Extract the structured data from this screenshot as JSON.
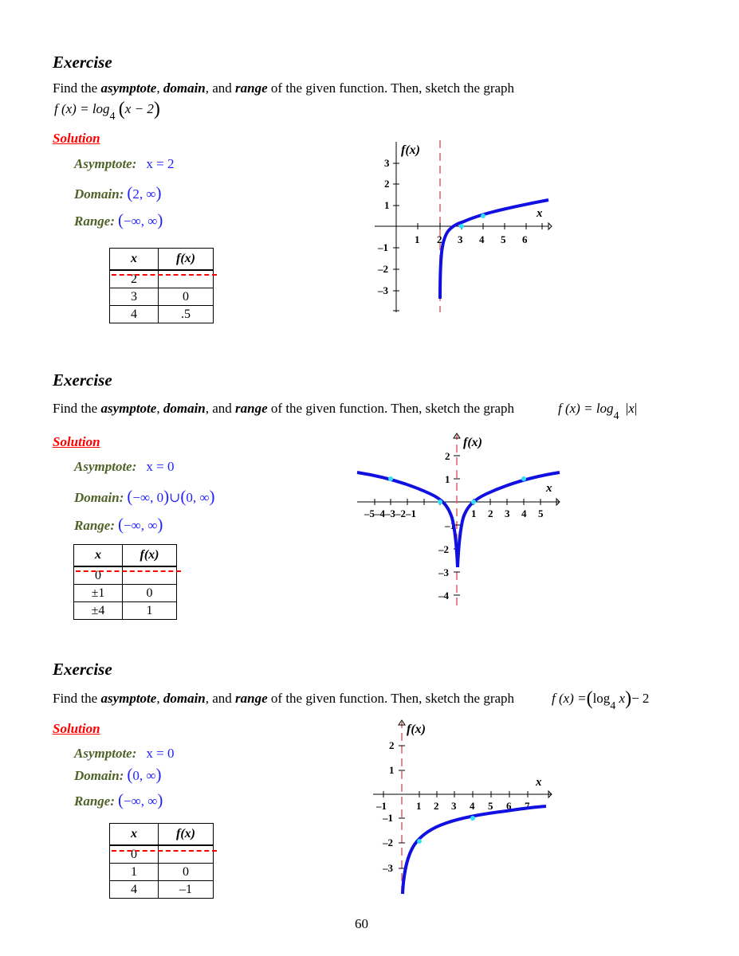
{
  "page_number": "60",
  "exercises": [
    {
      "title": "Exercise",
      "prompt": {
        "before": "Find the ",
        "w1": "asymptote",
        "sep1": ", ",
        "w2": "domain",
        "sep2": ", and ",
        "w3": "range",
        "after": " of the given function. Then, sketch the graph"
      },
      "formula": {
        "lhs": "f (x) = log",
        "base": "4",
        "arg": "x − 2"
      },
      "solution_label": "Solution",
      "asymptote": {
        "label": "Asymptote",
        "value": "x = 2"
      },
      "domain": {
        "label": "Domain",
        "value": "2,  ∞"
      },
      "range": {
        "label": "Range",
        "value": "−∞,  ∞"
      },
      "table": {
        "headers": [
          "x",
          "f(x)"
        ],
        "rows": [
          [
            "2",
            ""
          ],
          [
            "3",
            "0"
          ],
          [
            "4",
            ".5"
          ]
        ]
      },
      "graph": {
        "ylabel": "f(x)",
        "xlabel": "x",
        "xticks": [
          "1",
          "2",
          "3",
          "4",
          "5",
          "6"
        ],
        "yticks": [
          "3",
          "2",
          "1",
          "–1",
          "–2",
          "–3"
        ]
      }
    },
    {
      "title": "Exercise",
      "prompt": {
        "before": "Find the ",
        "w1": "asymptote",
        "sep1": ", ",
        "w2": "domain",
        "sep2": ", and ",
        "w3": "range",
        "after": " of the given function. Then, sketch the graph"
      },
      "formula": {
        "lhs": "f (x) = log",
        "base": "4",
        "arg": "x"
      },
      "solution_label": "Solution",
      "asymptote": {
        "label": "Asymptote",
        "value": "x = 0"
      },
      "domain": {
        "label": "Domain",
        "value_a": "−∞,  0",
        "union": "∪",
        "value_b": "0,  ∞"
      },
      "range": {
        "label": "Range",
        "value": "−∞,  ∞"
      },
      "table": {
        "headers": [
          "x",
          "f(x)"
        ],
        "rows": [
          [
            "0",
            ""
          ],
          [
            "±1",
            "0"
          ],
          [
            "±4",
            "1"
          ]
        ]
      },
      "graph": {
        "ylabel": "f(x)",
        "xlabel": "x",
        "xticks_neg": "–5–4–3–2–1",
        "xticks": [
          "1",
          "2",
          "3",
          "4",
          "5"
        ],
        "yticks": [
          "2",
          "1",
          "–1",
          "–2",
          "–3",
          "–4"
        ]
      }
    },
    {
      "title": "Exercise",
      "prompt": {
        "before": "Find the ",
        "w1": "asymptote",
        "sep1": ", ",
        "w2": "domain",
        "sep2": ", and ",
        "w3": "range",
        "after": " of the given function. Then, sketch the graph"
      },
      "formula": {
        "lhs": "f (x) =",
        "log": "log",
        "base": "4",
        "arg": "x",
        "tail": "− 2"
      },
      "solution_label": "Solution",
      "asymptote": {
        "label": "Asymptote",
        "value": "x = 0"
      },
      "domain": {
        "label": "Domain",
        "value": "0,  ∞"
      },
      "range": {
        "label": "Range",
        "value": "−∞,  ∞"
      },
      "table": {
        "headers": [
          "x",
          "f(x)"
        ],
        "rows": [
          [
            "0",
            ""
          ],
          [
            "1",
            "0"
          ],
          [
            "4",
            "–1"
          ]
        ]
      },
      "graph": {
        "ylabel": "f(x)",
        "xlabel": "x",
        "xticks": [
          "–1",
          "1",
          "2",
          "3",
          "4",
          "5",
          "6",
          "7"
        ],
        "yticks": [
          "2",
          "1",
          "–1",
          "–2",
          "–3"
        ]
      }
    }
  ]
}
